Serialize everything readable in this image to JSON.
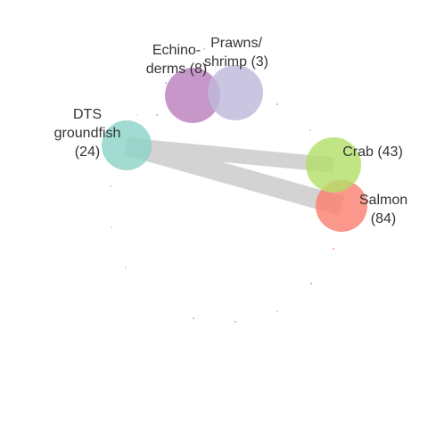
{
  "nodes": [
    {
      "id": "salmon",
      "label_lines": [
        "Salmon",
        "(84)"
      ],
      "color": "#fb8072"
    },
    {
      "id": "crab",
      "label_lines": [
        "Crab (43)"
      ],
      "color": "#b3de69"
    },
    {
      "id": "dts-groundfish",
      "label_lines": [
        "DTS",
        "groundfish",
        "(24)"
      ],
      "color": "#8dd3c7"
    },
    {
      "id": "echinoderms",
      "label_lines": [
        "Echino-",
        "derms (8)"
      ],
      "color": "#bc80bd"
    },
    {
      "id": "prawns-shrimp",
      "label_lines": [
        "Prawns/",
        "shrimp (3)"
      ],
      "color": "#bebada"
    }
  ],
  "edges": [
    {
      "from": "dts-groundfish",
      "to": "salmon",
      "color": "#d3d3d3"
    },
    {
      "from": "dts-groundfish",
      "to": "crab",
      "color": "#d3d3d3"
    }
  ],
  "minor_nodes": [
    {
      "id": "minor-1",
      "color": "#80b1d3"
    },
    {
      "id": "minor-2",
      "color": "#8dd3c7"
    },
    {
      "id": "minor-3",
      "color": "#bebada"
    },
    {
      "id": "minor-4",
      "color": "#bc80bd"
    },
    {
      "id": "minor-5",
      "color": "#fb8072"
    },
    {
      "id": "minor-6",
      "color": "#bc80bd"
    },
    {
      "id": "minor-7",
      "color": "#b3de69"
    },
    {
      "id": "minor-8",
      "color": "#fdb462"
    },
    {
      "id": "minor-9",
      "color": "#80b1d3"
    },
    {
      "id": "minor-10",
      "color": "#8dd3c7"
    },
    {
      "id": "minor-11",
      "color": "#bc80bd"
    },
    {
      "id": "minor-12",
      "color": "#ffffb3"
    },
    {
      "id": "minor-13",
      "color": "#fccde5"
    },
    {
      "id": "minor-14",
      "color": "#ffffb3"
    },
    {
      "id": "minor-15",
      "color": "#bebada"
    },
    {
      "id": "minor-16",
      "color": "#80b1d3"
    }
  ]
}
